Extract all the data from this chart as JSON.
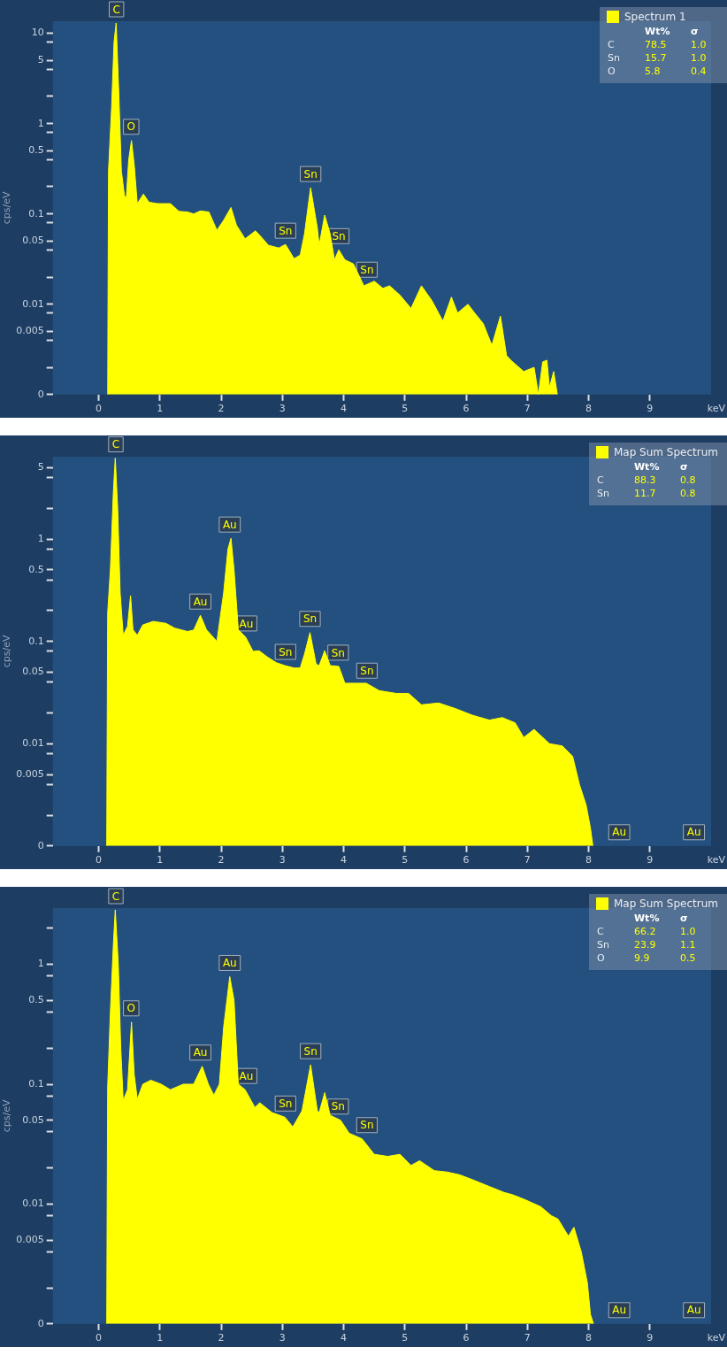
{
  "chart_data": [
    {
      "type": "area",
      "ylabel": "cps/eV",
      "xlabel": "keV",
      "log": "y",
      "grid": false,
      "legend": "top right",
      "marker": "none",
      "xlim": [
        -0.75,
        10.0
      ],
      "xticks": [
        0,
        1,
        2,
        3,
        4,
        5,
        6,
        7,
        8,
        9
      ],
      "ylim": [
        0.001,
        13.6
      ],
      "yticks": [
        {
          "value": 0.001,
          "label": "0"
        },
        {
          "value": 0.002,
          "label": null
        },
        {
          "value": 0.004,
          "label": null
        },
        0.005,
        {
          "value": 0.008,
          "label": null
        },
        0.01,
        {
          "value": 0.02,
          "label": null
        },
        {
          "value": 0.04,
          "label": null
        },
        0.05,
        {
          "value": 0.08,
          "label": null
        },
        0.1,
        {
          "value": 0.2,
          "label": null
        },
        {
          "value": 0.4,
          "label": null
        },
        0.5,
        {
          "value": 0.8,
          "label": null
        },
        1,
        {
          "value": 2,
          "label": null
        },
        {
          "value": 4,
          "label": null
        },
        5,
        {
          "value": 8,
          "label": null
        },
        10
      ],
      "x": [
        0.146,
        0.16,
        0.21,
        0.25,
        0.285,
        0.33,
        0.37,
        0.42,
        0.45,
        0.49,
        0.535,
        0.58,
        0.63,
        0.73,
        0.82,
        0.96,
        1.17,
        1.31,
        1.45,
        1.55,
        1.66,
        1.8,
        1.93,
        2.04,
        2.16,
        2.25,
        2.39,
        2.56,
        2.66,
        2.77,
        2.94,
        3.05,
        3.19,
        3.29,
        3.36,
        3.46,
        3.57,
        3.6,
        3.69,
        3.78,
        3.85,
        3.92,
        4.02,
        4.16,
        4.33,
        4.5,
        4.64,
        4.75,
        4.92,
        5.1,
        5.27,
        5.44,
        5.62,
        5.76,
        5.86,
        6.03,
        6.14,
        6.28,
        6.42,
        6.56,
        6.66,
        6.73,
        6.94,
        7.11,
        7.18,
        7.25,
        7.32,
        7.36,
        7.43,
        7.49
      ],
      "series": [
        {
          "name": "Spectrum 1",
          "color": "#ffff00",
          "values": [
            0.001,
            0.3,
            1.5,
            8,
            13,
            2,
            0.3,
            0.16,
            0.15,
            0.4,
            0.65,
            0.35,
            0.13,
            0.166,
            0.135,
            0.13,
            0.13,
            0.107,
            0.105,
            0.1,
            0.108,
            0.105,
            0.066,
            0.085,
            0.118,
            0.075,
            0.053,
            0.065,
            0.055,
            0.045,
            0.042,
            0.046,
            0.032,
            0.035,
            0.06,
            0.195,
            0.07,
            0.045,
            0.097,
            0.06,
            0.031,
            0.04,
            0.031,
            0.028,
            0.016,
            0.018,
            0.015,
            0.016,
            0.0126,
            0.009,
            0.016,
            0.011,
            0.0065,
            0.012,
            0.008,
            0.01,
            0.008,
            0.0061,
            0.0035,
            0.0074,
            0.0027,
            0.0024,
            0.0018,
            0.002,
            0.001,
            0.0023,
            0.0024,
            0.0012,
            0.0018,
            0.001
          ]
        }
      ],
      "annotations": [
        "Wt%",
        "σ",
        "C",
        "78.5",
        "1.0",
        "Sn",
        "15.7",
        "1.0",
        "O",
        "5.8",
        "0.4",
        {
          "text": "C",
          "x": 0.29,
          "y": 13
        },
        {
          "text": "O",
          "x": 0.53,
          "y": 0.65
        },
        {
          "text": "Sn",
          "x": 3.05,
          "y": 0.046
        },
        {
          "text": "Sn",
          "x": 3.46,
          "y": 0.195
        },
        {
          "text": "Sn",
          "x": 3.92,
          "y": 0.04
        },
        {
          "text": "Sn",
          "x": 4.38,
          "y": 0.017
        }
      ]
    },
    {
      "type": "area",
      "ylabel": "cps/eV",
      "xlabel": "keV",
      "log": "y",
      "grid": false,
      "legend": "top right",
      "marker": "none",
      "xlim": [
        -0.75,
        10.0
      ],
      "xticks": [
        0,
        1,
        2,
        3,
        4,
        5,
        6,
        7,
        8,
        9
      ],
      "ylim": [
        0.001,
        6.4
      ],
      "yticks": [
        {
          "value": 0.001,
          "label": "0"
        },
        {
          "value": 0.002,
          "label": null
        },
        {
          "value": 0.004,
          "label": null
        },
        0.005,
        {
          "value": 0.008,
          "label": null
        },
        0.01,
        {
          "value": 0.02,
          "label": null
        },
        {
          "value": 0.04,
          "label": null
        },
        0.05,
        {
          "value": 0.08,
          "label": null
        },
        0.1,
        {
          "value": 0.2,
          "label": null
        },
        {
          "value": 0.4,
          "label": null
        },
        0.5,
        {
          "value": 0.8,
          "label": null
        },
        1,
        {
          "value": 2,
          "label": null
        },
        {
          "value": 4,
          "label": null
        },
        5
      ],
      "x": [
        0.13,
        0.146,
        0.19,
        0.24,
        0.27,
        0.31,
        0.35,
        0.4,
        0.47,
        0.52,
        0.56,
        0.63,
        0.72,
        0.89,
        1.1,
        1.24,
        1.45,
        1.55,
        1.66,
        1.76,
        1.93,
        2.04,
        2.11,
        2.16,
        2.21,
        2.28,
        2.4,
        2.52,
        2.62,
        2.76,
        2.9,
        3.04,
        3.19,
        3.29,
        3.36,
        3.45,
        3.55,
        3.6,
        3.69,
        3.78,
        3.92,
        4.02,
        4.37,
        4.58,
        4.86,
        5.06,
        5.27,
        5.55,
        5.83,
        6.1,
        6.38,
        6.59,
        6.8,
        6.94,
        7.11,
        7.36,
        7.57,
        7.74,
        7.85,
        7.96,
        8.03,
        8.07
      ],
      "series": [
        {
          "name": "Map Sum Spectrum",
          "color": "#ffff00",
          "values": [
            0.001,
            0.19,
            0.5,
            3,
            6.2,
            2,
            0.3,
            0.115,
            0.14,
            0.28,
            0.13,
            0.115,
            0.145,
            0.157,
            0.15,
            0.135,
            0.125,
            0.129,
            0.18,
            0.13,
            0.1,
            0.3,
            0.8,
            1.02,
            0.5,
            0.13,
            0.11,
            0.08,
            0.081,
            0.07,
            0.062,
            0.058,
            0.055,
            0.055,
            0.075,
            0.122,
            0.06,
            0.058,
            0.081,
            0.058,
            0.057,
            0.039,
            0.039,
            0.033,
            0.031,
            0.031,
            0.024,
            0.025,
            0.022,
            0.019,
            0.017,
            0.018,
            0.016,
            0.0115,
            0.0138,
            0.01,
            0.0095,
            0.0075,
            0.004,
            0.0025,
            0.0015,
            0.001
          ]
        }
      ],
      "annotations": [
        "Wt%",
        "σ",
        "C",
        "88.3",
        "0.8",
        "Sn",
        "11.7",
        "0.8",
        {
          "text": "C",
          "x": 0.28,
          "y": 6.2
        },
        {
          "text": "Au",
          "x": 1.66,
          "y": 0.18
        },
        {
          "text": "Au",
          "x": 2.14,
          "y": 1.02
        },
        {
          "text": "Au",
          "x": 2.41,
          "y": 0.11
        },
        {
          "text": "Sn",
          "x": 3.05,
          "y": 0.058
        },
        {
          "text": "Sn",
          "x": 3.45,
          "y": 0.122
        },
        {
          "text": "Sn",
          "x": 3.91,
          "y": 0.057
        },
        {
          "text": "Sn",
          "x": 4.38,
          "y": 0.038
        },
        {
          "text": "Au",
          "x": 8.5
        },
        {
          "text": "Au",
          "x": 9.72
        }
      ]
    },
    {
      "type": "area",
      "ylabel": "cps/eV",
      "xlabel": "keV",
      "log": "y",
      "grid": false,
      "legend": "top right",
      "marker": "none",
      "xlim": [
        -0.75,
        10.0
      ],
      "xticks": [
        0,
        1,
        2,
        3,
        4,
        5,
        6,
        7,
        8,
        9
      ],
      "ylim": [
        0.001,
        2.95
      ],
      "yticks": [
        {
          "value": 0.001,
          "label": "0"
        },
        {
          "value": 0.002,
          "label": null
        },
        {
          "value": 0.004,
          "label": null
        },
        0.005,
        {
          "value": 0.008,
          "label": null
        },
        0.01,
        {
          "value": 0.02,
          "label": null
        },
        {
          "value": 0.04,
          "label": null
        },
        0.05,
        {
          "value": 0.08,
          "label": null
        },
        0.1,
        {
          "value": 0.2,
          "label": null
        },
        {
          "value": 0.4,
          "label": null
        },
        0.5,
        {
          "value": 0.8,
          "label": null
        },
        1,
        {
          "value": 2,
          "label": null
        }
      ],
      "x": [
        0.13,
        0.146,
        0.19,
        0.24,
        0.27,
        0.32,
        0.36,
        0.4,
        0.47,
        0.535,
        0.58,
        0.63,
        0.72,
        0.85,
        1.02,
        1.17,
        1.38,
        1.55,
        1.69,
        1.79,
        1.88,
        1.97,
        2.04,
        2.14,
        2.21,
        2.28,
        2.39,
        2.55,
        2.63,
        2.83,
        3.04,
        3.17,
        3.32,
        3.46,
        3.57,
        3.6,
        3.69,
        3.78,
        3.95,
        4.09,
        4.3,
        4.5,
        4.72,
        4.92,
        5.1,
        5.24,
        5.48,
        5.69,
        5.9,
        6.1,
        6.38,
        6.62,
        6.75,
        6.94,
        7.22,
        7.39,
        7.5,
        7.67,
        7.76,
        7.88,
        7.98,
        8.03,
        8.08
      ],
      "series": [
        {
          "name": "Map Sum Spectrum",
          "color": "#ffff00",
          "values": [
            0.001,
            0.095,
            0.4,
            1.5,
            2.85,
            1,
            0.2,
            0.073,
            0.09,
            0.33,
            0.12,
            0.075,
            0.1,
            0.108,
            0.1,
            0.09,
            0.1,
            0.1,
            0.141,
            0.1,
            0.081,
            0.1,
            0.3,
            0.79,
            0.5,
            0.1,
            0.09,
            0.064,
            0.07,
            0.058,
            0.053,
            0.044,
            0.06,
            0.145,
            0.06,
            0.058,
            0.085,
            0.055,
            0.05,
            0.039,
            0.035,
            0.026,
            0.025,
            0.026,
            0.021,
            0.023,
            0.019,
            0.0185,
            0.0175,
            0.016,
            0.014,
            0.0125,
            0.012,
            0.011,
            0.0095,
            0.008,
            0.0075,
            0.0054,
            0.0064,
            0.004,
            0.0022,
            0.0012,
            0.001
          ]
        }
      ],
      "annotations": [
        "Wt%",
        "σ",
        "C",
        "66.2",
        "1.0",
        "Sn",
        "23.9",
        "1.1",
        "O",
        "9.9",
        "0.5",
        {
          "text": "C",
          "x": 0.28,
          "y": 2.85
        },
        {
          "text": "O",
          "x": 0.53,
          "y": 0.33
        },
        {
          "text": "Au",
          "x": 1.66,
          "y": 0.141
        },
        {
          "text": "Au",
          "x": 2.14,
          "y": 0.79
        },
        {
          "text": "Au",
          "x": 2.41,
          "y": 0.09
        },
        {
          "text": "Sn",
          "x": 3.05,
          "y": 0.053
        },
        {
          "text": "Sn",
          "x": 3.46,
          "y": 0.145
        },
        {
          "text": "Sn",
          "x": 3.91,
          "y": 0.05
        },
        {
          "text": "Sn",
          "x": 4.38,
          "y": 0.035
        },
        {
          "text": "Au",
          "x": 8.5
        },
        {
          "text": "Au",
          "x": 9.72
        }
      ]
    }
  ]
}
